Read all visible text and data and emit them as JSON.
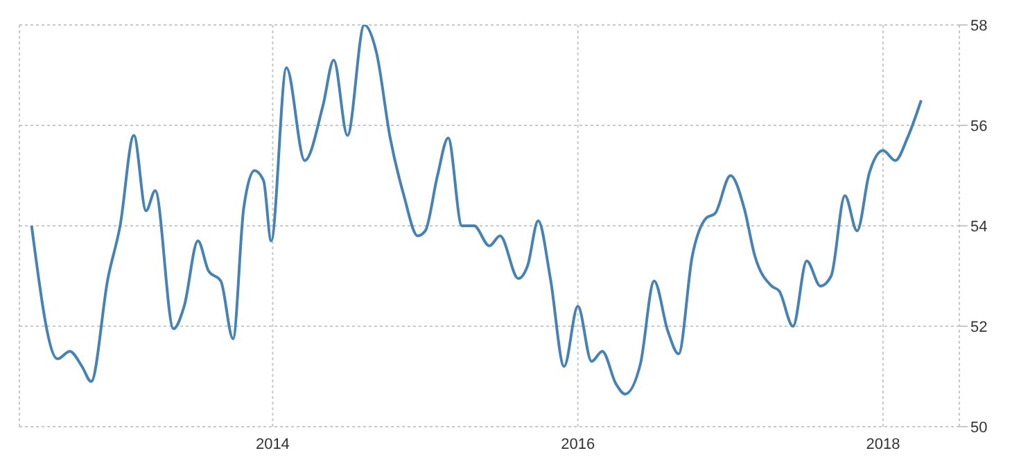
{
  "chart_data": {
    "type": "line",
    "x": [
      2012.42,
      2012.59,
      2012.67,
      2012.75,
      2012.81,
      2012.92,
      2013.0,
      2013.09,
      2013.17,
      2013.23,
      2013.35,
      2013.42,
      2013.51,
      2013.58,
      2013.66,
      2013.74,
      2013.81,
      2013.88,
      2013.94,
      2013.99,
      2014.09,
      2014.21,
      2014.33,
      2014.4,
      2014.49,
      2014.6,
      2014.68,
      2014.77,
      2014.86,
      2014.95,
      2015.0,
      2015.08,
      2015.15,
      2015.24,
      2015.32,
      2015.42,
      2015.49,
      2015.61,
      2015.67,
      2015.74,
      2015.82,
      2015.91,
      2016.0,
      2016.09,
      2016.16,
      2016.25,
      2016.31,
      2016.41,
      2016.5,
      2016.59,
      2016.66,
      2016.75,
      2016.84,
      2016.9,
      2017.0,
      2017.09,
      2017.16,
      2017.27,
      2017.32,
      2017.41,
      2017.5,
      2017.59,
      2017.66,
      2017.75,
      2017.83,
      2017.91,
      2018.0,
      2018.08,
      2018.16,
      2018.25
    ],
    "series": [
      {
        "color": "#4682b4",
        "values": [
          54.0,
          51.35,
          51.5,
          51.2,
          50.9,
          52.95,
          54.0,
          55.8,
          54.3,
          54.7,
          51.95,
          52.4,
          53.7,
          53.1,
          52.9,
          51.75,
          54.35,
          55.1,
          54.9,
          53.7,
          57.15,
          55.3,
          56.4,
          57.3,
          55.8,
          58.0,
          57.45,
          55.75,
          54.6,
          53.8,
          53.9,
          55.0,
          55.75,
          54.0,
          54.0,
          53.6,
          53.8,
          52.95,
          53.2,
          54.1,
          52.95,
          51.2,
          52.4,
          51.3,
          51.5,
          50.85,
          50.65,
          51.25,
          52.9,
          51.9,
          51.45,
          53.4,
          54.15,
          54.25,
          55.0,
          54.35,
          53.4,
          52.8,
          52.7,
          52.0,
          53.3,
          52.8,
          53.0,
          54.6,
          53.9,
          55.05,
          55.5,
          55.3,
          55.75,
          56.5
        ]
      }
    ],
    "xlim": [
      2012.34,
      2018.5
    ],
    "xticks": [
      2014,
      2016,
      2018
    ],
    "ylim": [
      50,
      58
    ],
    "yticks": [
      50,
      52,
      54,
      56,
      58
    ],
    "grid": true,
    "legend": false,
    "marker": "none",
    "line_style": "solid"
  }
}
